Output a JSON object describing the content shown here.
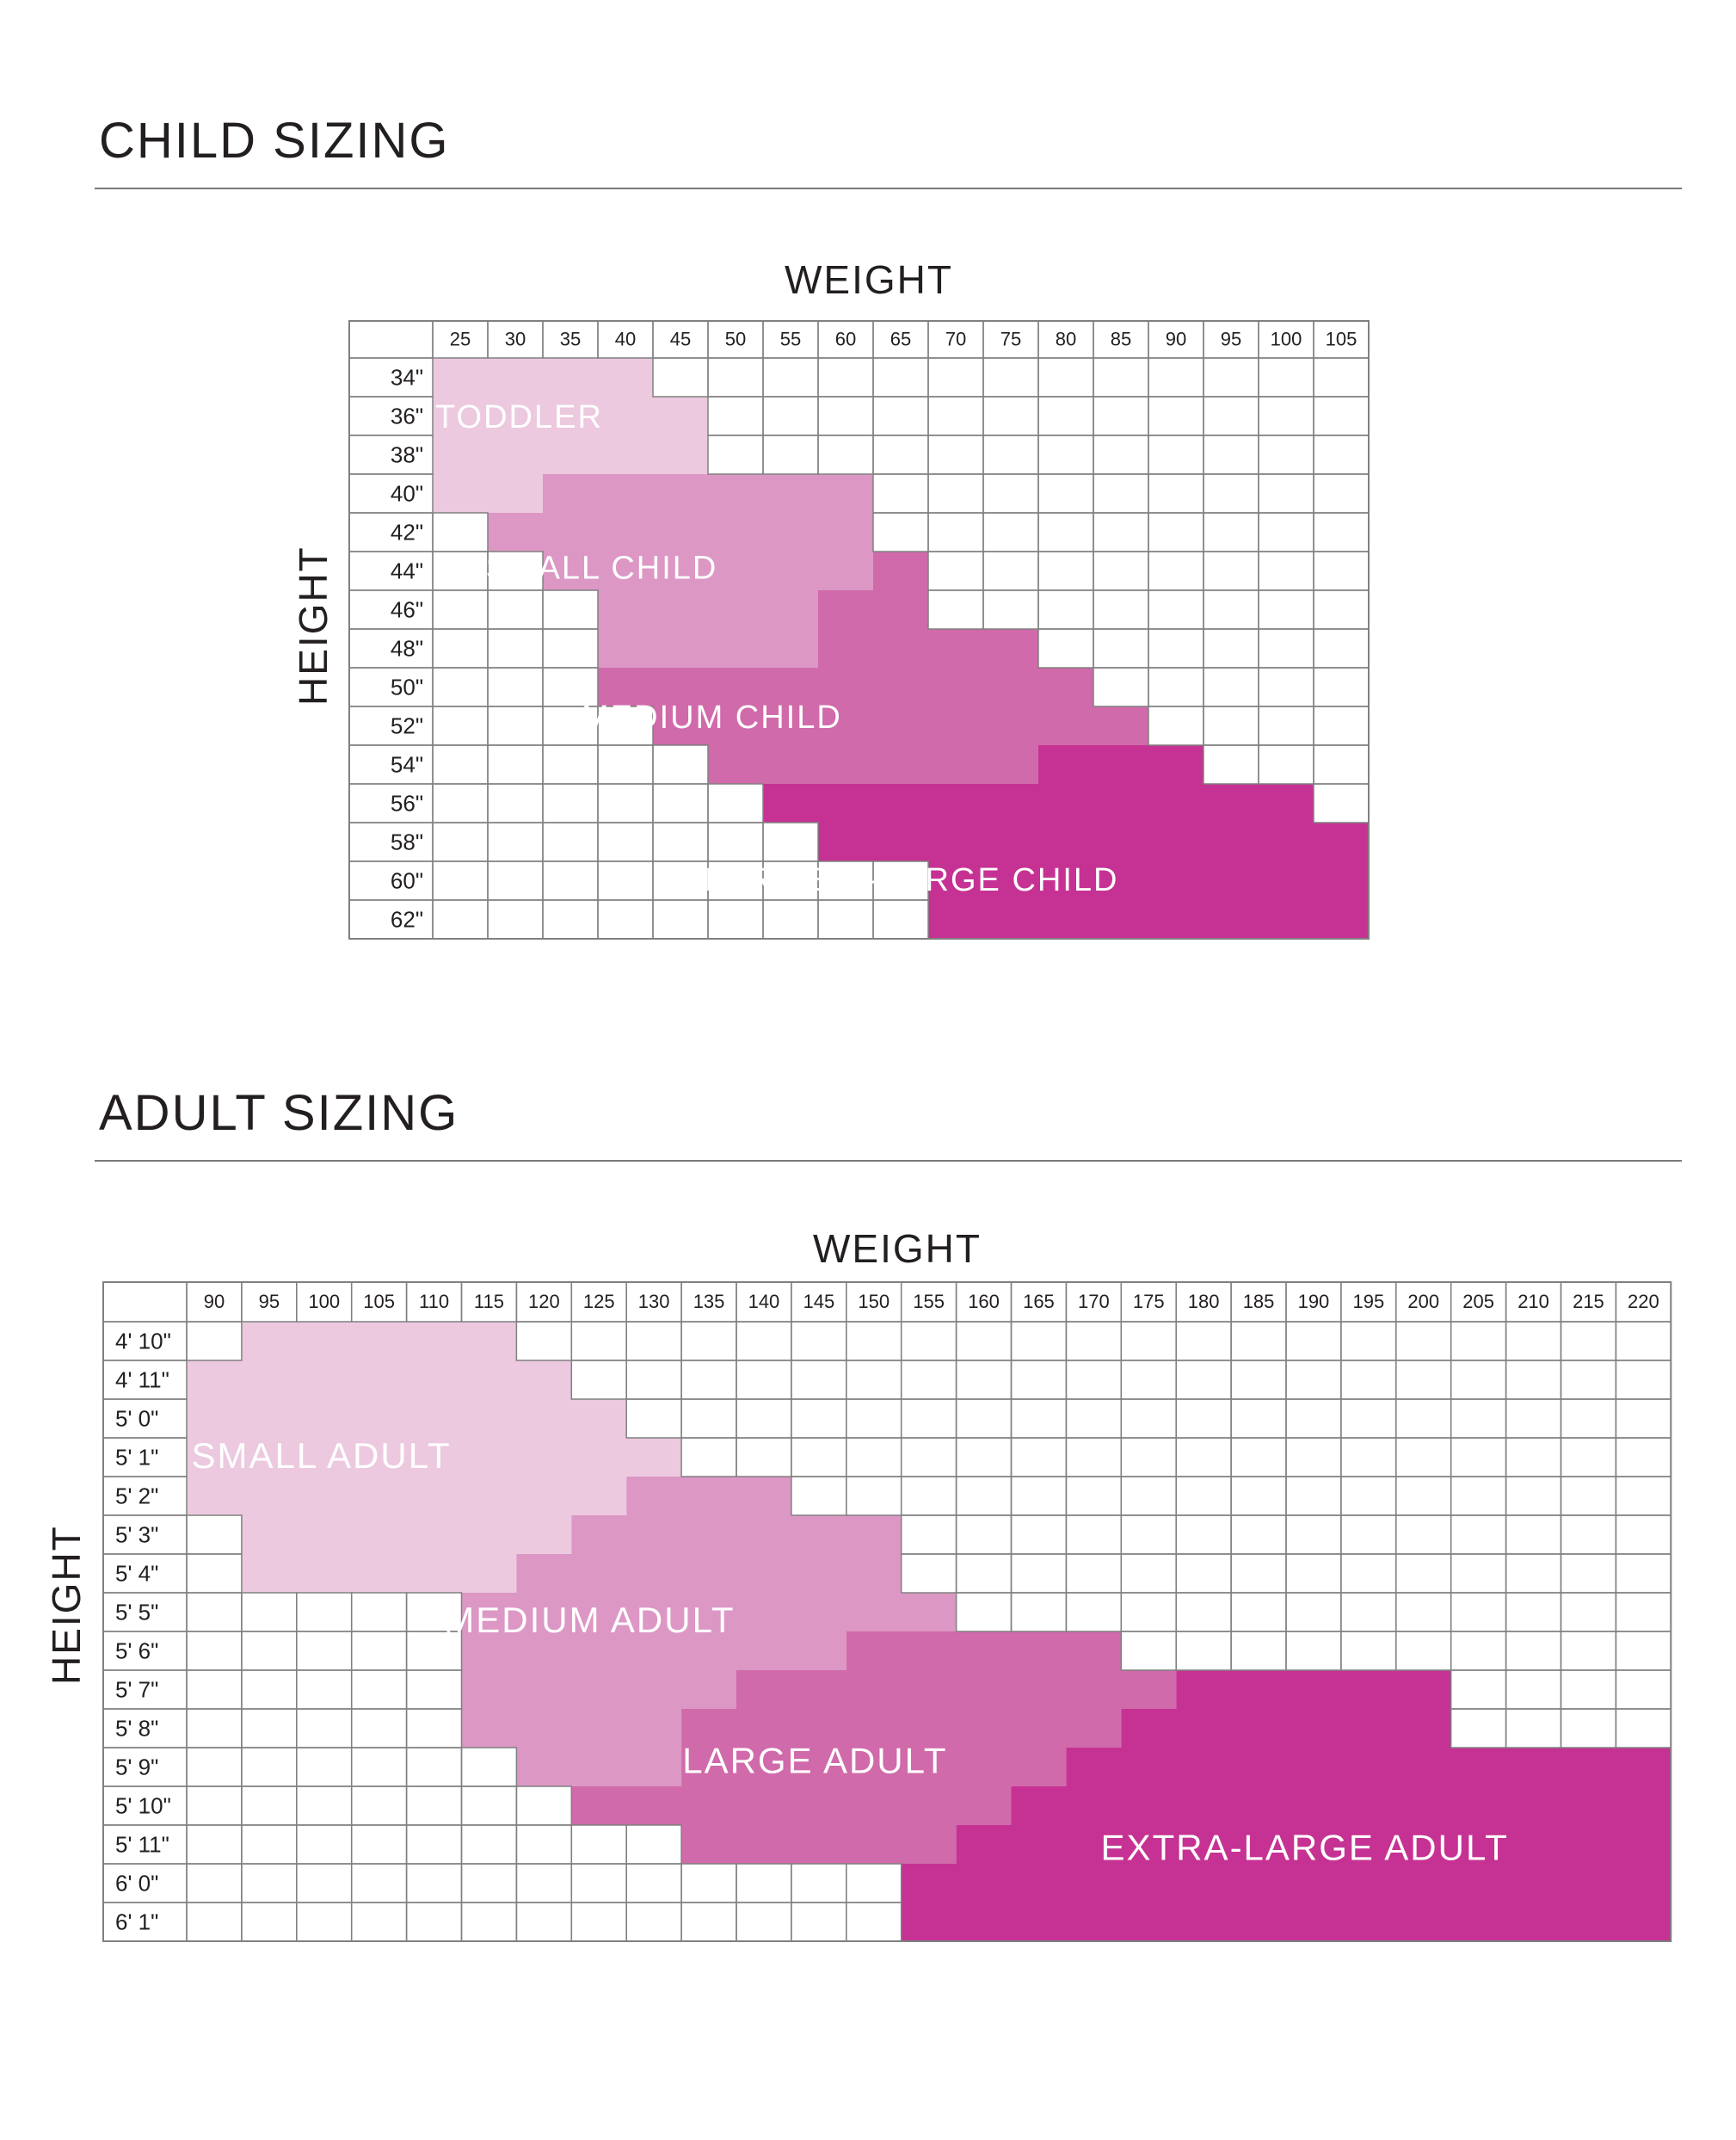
{
  "colors": {
    "lightest": "#ecc9df",
    "light": "#dc97c5",
    "medium": "#d06aaa",
    "dark": "#c63293",
    "grid": "#808080"
  },
  "chart_data": [
    {
      "type": "table",
      "title": "CHILD SIZING",
      "xlabel": "WEIGHT",
      "ylabel": "HEIGHT",
      "weights": [
        "25",
        "30",
        "35",
        "40",
        "45",
        "50",
        "55",
        "60",
        "65",
        "70",
        "75",
        "80",
        "85",
        "90",
        "95",
        "100",
        "105"
      ],
      "heights": [
        "34\"",
        "36\"",
        "38\"",
        "40\"",
        "42\"",
        "44\"",
        "46\"",
        "48\"",
        "50\"",
        "52\"",
        "54\"",
        "56\"",
        "58\"",
        "60\"",
        "62\""
      ],
      "zones": [
        {
          "name": "TODDLER",
          "color": "lightest",
          "rows": [
            [
              0,
              3
            ],
            [
              0,
              4
            ],
            [
              0,
              4
            ],
            [
              0,
              1
            ],
            null,
            null,
            null,
            null,
            null,
            null,
            null,
            null,
            null,
            null,
            null
          ]
        },
        {
          "name": "SMALL CHILD",
          "color": "light",
          "rows": [
            null,
            null,
            null,
            [
              2,
              7
            ],
            [
              1,
              7
            ],
            [
              2,
              7
            ],
            [
              3,
              6
            ],
            [
              3,
              6
            ],
            null,
            null,
            null,
            null,
            null,
            null,
            null
          ]
        },
        {
          "name": "MEDIUM CHILD",
          "color": "medium",
          "rows": [
            null,
            null,
            null,
            null,
            null,
            [
              8,
              8
            ],
            [
              7,
              8
            ],
            [
              7,
              10
            ],
            [
              3,
              11
            ],
            [
              4,
              12
            ],
            [
              5,
              10
            ],
            null,
            null,
            null,
            null
          ]
        },
        {
          "name": "LARGE/ X-LARGE CHILD",
          "color": "dark",
          "rows": [
            null,
            null,
            null,
            null,
            null,
            null,
            null,
            null,
            null,
            null,
            [
              11,
              13
            ],
            [
              6,
              15
            ],
            [
              7,
              16
            ],
            [
              9,
              16
            ],
            [
              9,
              16
            ]
          ]
        }
      ]
    },
    {
      "type": "table",
      "title": "ADULT SIZING",
      "xlabel": "WEIGHT",
      "ylabel": "HEIGHT",
      "weights": [
        "90",
        "95",
        "100",
        "105",
        "110",
        "115",
        "120",
        "125",
        "130",
        "135",
        "140",
        "145",
        "150",
        "155",
        "160",
        "165",
        "170",
        "175",
        "180",
        "185",
        "190",
        "195",
        "200",
        "205",
        "210",
        "215",
        "220"
      ],
      "heights": [
        "4' 10\"",
        "4' 11\"",
        "5' 0\"",
        "5' 1\"",
        "5' 2\"",
        "5' 3\"",
        "5' 4\"",
        "5' 5\"",
        "5' 6\"",
        "5' 7\"",
        "5' 8\"",
        "5' 9\"",
        "5' 10\"",
        "5' 11\"",
        "6' 0\"",
        "6' 1\""
      ],
      "zones": [
        {
          "name": "SMALL ADULT",
          "color": "lightest",
          "rows": [
            [
              1,
              5
            ],
            [
              0,
              6
            ],
            [
              0,
              7
            ],
            [
              0,
              8
            ],
            [
              0,
              7
            ],
            [
              1,
              6
            ],
            [
              1,
              5
            ],
            null,
            null,
            null,
            null,
            null,
            null,
            null,
            null,
            null
          ]
        },
        {
          "name": "MEDIUM ADULT",
          "color": "light",
          "rows": [
            null,
            null,
            null,
            null,
            [
              8,
              10
            ],
            [
              7,
              12
            ],
            [
              6,
              12
            ],
            [
              5,
              13
            ],
            [
              5,
              11
            ],
            [
              5,
              9
            ],
            [
              5,
              8
            ],
            [
              6,
              8
            ],
            null,
            null,
            null,
            null
          ]
        },
        {
          "name": "LARGE ADULT",
          "color": "medium",
          "rows": [
            null,
            null,
            null,
            null,
            null,
            null,
            null,
            null,
            [
              12,
              16
            ],
            [
              10,
              17
            ],
            [
              9,
              16
            ],
            [
              9,
              15
            ],
            [
              7,
              14
            ],
            [
              9,
              13
            ],
            null,
            null
          ]
        },
        {
          "name": "EXTRA-LARGE ADULT",
          "color": "dark",
          "rows": [
            null,
            null,
            null,
            null,
            null,
            null,
            null,
            null,
            null,
            [
              18,
              22
            ],
            [
              17,
              22
            ],
            [
              16,
              26
            ],
            [
              15,
              26
            ],
            [
              14,
              26
            ],
            [
              13,
              26
            ],
            [
              13,
              26
            ]
          ]
        }
      ]
    }
  ]
}
